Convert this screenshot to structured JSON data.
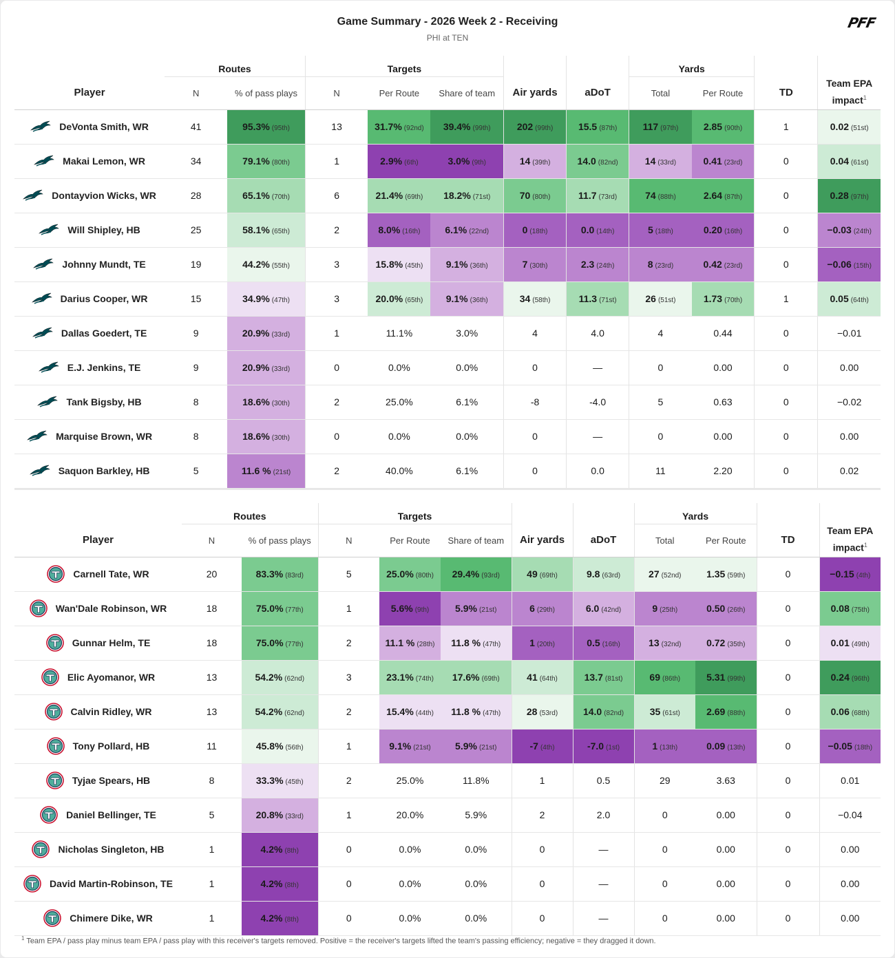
{
  "header": {
    "title": "Game Summary - 2026 Week 2 - Receiving",
    "subtitle": "PHI at TEN",
    "logo": "PFF"
  },
  "labels": {
    "player": "Player",
    "routes": "Routes",
    "targets": "Targets",
    "yards": "Yards",
    "n": "N",
    "pct_pass": "% of pass plays",
    "per_route": "Per Route",
    "share_team": "Share of team",
    "air_yards": "Air yards",
    "adot": "aDoT",
    "total": "Total",
    "td": "TD",
    "epa_line1": "Team EPA",
    "epa_line2": "impact",
    "footnote_mark": "1"
  },
  "footnote": "Team EPA / pass play minus team EPA / pass play with this receiver's targets removed. Positive = the receiver's targets lifted the team's passing efficiency; negative = they dragged it down.",
  "colors": {
    "dg": "#3f9c5c",
    "g": "#58ba72",
    "mg": "#7bcb90",
    "lg": "#a6dcb3",
    "vlg": "#cdebd5",
    "xlg": "#eaf6ec",
    "dp": "#8e41b0",
    "p": "#a461c0",
    "mp": "#bb85cf",
    "lp": "#d4b0e0",
    "vlp": "#ede0f3",
    "eagle": "#004c54",
    "titan": "#4b92db",
    "titan_red": "#c8102e"
  },
  "chart_data": [
    {
      "type": "table",
      "team": "PHI",
      "columns": [
        "Player",
        "Routes N",
        "% of pass plays",
        "Targets N",
        "Per Route",
        "Share of team",
        "Air yards",
        "aDoT",
        "Yards Total",
        "Yards Per Route",
        "TD",
        "Team EPA impact"
      ],
      "rows": [
        [
          "DeVonta Smith, WR",
          [
            "41"
          ],
          [
            "95.3%",
            "(95th)",
            "dg"
          ],
          [
            "13"
          ],
          [
            "31.7%",
            "(92nd)",
            "g"
          ],
          [
            "39.4%",
            "(99th)",
            "dg"
          ],
          [
            "202",
            "(99th)",
            "dg"
          ],
          [
            "15.5",
            "(87th)",
            "g"
          ],
          [
            "117",
            "(97th)",
            "dg"
          ],
          [
            "2.85",
            "(90th)",
            "g"
          ],
          [
            "1"
          ],
          [
            "0.02",
            "(51st)",
            "xlg"
          ]
        ],
        [
          "Makai Lemon, WR",
          [
            "34"
          ],
          [
            "79.1%",
            "(80th)",
            "mg"
          ],
          [
            "1"
          ],
          [
            "2.9%",
            "(6th)",
            "dp"
          ],
          [
            "3.0%",
            "(9th)",
            "dp"
          ],
          [
            "14",
            "(39th)",
            "lp"
          ],
          [
            "14.0",
            "(82nd)",
            "mg"
          ],
          [
            "14",
            "(33rd)",
            "lp"
          ],
          [
            "0.41",
            "(23rd)",
            "mp"
          ],
          [
            "0"
          ],
          [
            "0.04",
            "(61st)",
            "vlg"
          ]
        ],
        [
          "Dontayvion Wicks, WR",
          [
            "28"
          ],
          [
            "65.1%",
            "(70th)",
            "lg"
          ],
          [
            "6"
          ],
          [
            "21.4%",
            "(69th)",
            "lg"
          ],
          [
            "18.2%",
            "(71st)",
            "lg"
          ],
          [
            "70",
            "(80th)",
            "mg"
          ],
          [
            "11.7",
            "(73rd)",
            "lg"
          ],
          [
            "74",
            "(88th)",
            "g"
          ],
          [
            "2.64",
            "(87th)",
            "g"
          ],
          [
            "0"
          ],
          [
            "0.28",
            "(97th)",
            "dg"
          ]
        ],
        [
          "Will Shipley, HB",
          [
            "25"
          ],
          [
            "58.1%",
            "(65th)",
            "vlg"
          ],
          [
            "2"
          ],
          [
            "8.0%",
            "(16th)",
            "p"
          ],
          [
            "6.1%",
            "(22nd)",
            "mp"
          ],
          [
            "0",
            "(18th)",
            "p"
          ],
          [
            "0.0",
            "(14th)",
            "p"
          ],
          [
            "5",
            "(18th)",
            "p"
          ],
          [
            "0.20",
            "(16th)",
            "p"
          ],
          [
            "0"
          ],
          [
            "−0.03",
            "(24th)",
            "mp"
          ]
        ],
        [
          "Johnny Mundt, TE",
          [
            "19"
          ],
          [
            "44.2%",
            "(55th)",
            "xlg"
          ],
          [
            "3"
          ],
          [
            "15.8%",
            "(45th)",
            "vlp"
          ],
          [
            "9.1%",
            "(36th)",
            "lp"
          ],
          [
            "7",
            "(30th)",
            "mp"
          ],
          [
            "2.3",
            "(24th)",
            "mp"
          ],
          [
            "8",
            "(23rd)",
            "mp"
          ],
          [
            "0.42",
            "(23rd)",
            "mp"
          ],
          [
            "0"
          ],
          [
            "−0.06",
            "(15th)",
            "p"
          ]
        ],
        [
          "Darius Cooper, WR",
          [
            "15"
          ],
          [
            "34.9%",
            "(47th)",
            "vlp"
          ],
          [
            "3"
          ],
          [
            "20.0%",
            "(65th)",
            "vlg"
          ],
          [
            "9.1%",
            "(36th)",
            "lp"
          ],
          [
            "34",
            "(58th)",
            "xlg"
          ],
          [
            "11.3",
            "(71st)",
            "lg"
          ],
          [
            "26",
            "(51st)",
            "xlg"
          ],
          [
            "1.73",
            "(70th)",
            "lg"
          ],
          [
            "1"
          ],
          [
            "0.05",
            "(64th)",
            "vlg"
          ]
        ],
        [
          "Dallas Goedert, TE",
          [
            "9"
          ],
          [
            "20.9%",
            "(33rd)",
            "lp"
          ],
          [
            "1"
          ],
          [
            "11.1%"
          ],
          [
            "3.0%"
          ],
          [
            "4"
          ],
          [
            "4.0"
          ],
          [
            "4"
          ],
          [
            "0.44"
          ],
          [
            "0"
          ],
          [
            "−0.01"
          ]
        ],
        [
          "E.J. Jenkins, TE",
          [
            "9"
          ],
          [
            "20.9%",
            "(33rd)",
            "lp"
          ],
          [
            "0"
          ],
          [
            "0.0%"
          ],
          [
            "0.0%"
          ],
          [
            "0"
          ],
          [
            "—"
          ],
          [
            "0"
          ],
          [
            "0.00"
          ],
          [
            "0"
          ],
          [
            "0.00"
          ]
        ],
        [
          "Tank Bigsby, HB",
          [
            "8"
          ],
          [
            "18.6%",
            "(30th)",
            "lp"
          ],
          [
            "2"
          ],
          [
            "25.0%"
          ],
          [
            "6.1%"
          ],
          [
            "-8"
          ],
          [
            "-4.0"
          ],
          [
            "5"
          ],
          [
            "0.63"
          ],
          [
            "0"
          ],
          [
            "−0.02"
          ]
        ],
        [
          "Marquise Brown, WR",
          [
            "8"
          ],
          [
            "18.6%",
            "(30th)",
            "lp"
          ],
          [
            "0"
          ],
          [
            "0.0%"
          ],
          [
            "0.0%"
          ],
          [
            "0"
          ],
          [
            "—"
          ],
          [
            "0"
          ],
          [
            "0.00"
          ],
          [
            "0"
          ],
          [
            "0.00"
          ]
        ],
        [
          "Saquon Barkley, HB",
          [
            "5"
          ],
          [
            "11.6 %",
            "(21st)",
            "mp"
          ],
          [
            "2"
          ],
          [
            "40.0%"
          ],
          [
            "6.1%"
          ],
          [
            "0"
          ],
          [
            "0.0"
          ],
          [
            "11"
          ],
          [
            "2.20"
          ],
          [
            "0"
          ],
          [
            "0.02"
          ]
        ]
      ]
    },
    {
      "type": "table",
      "team": "TEN",
      "columns": [
        "Player",
        "Routes N",
        "% of pass plays",
        "Targets N",
        "Per Route",
        "Share of team",
        "Air yards",
        "aDoT",
        "Yards Total",
        "Yards Per Route",
        "TD",
        "Team EPA impact"
      ],
      "rows": [
        [
          "Carnell Tate, WR",
          [
            "20"
          ],
          [
            "83.3%",
            "(83rd)",
            "mg"
          ],
          [
            "5"
          ],
          [
            "25.0%",
            "(80th)",
            "mg"
          ],
          [
            "29.4%",
            "(93rd)",
            "g"
          ],
          [
            "49",
            "(69th)",
            "lg"
          ],
          [
            "9.8",
            "(63rd)",
            "vlg"
          ],
          [
            "27",
            "(52nd)",
            "xlg"
          ],
          [
            "1.35",
            "(59th)",
            "xlg"
          ],
          [
            "0"
          ],
          [
            "−0.15",
            "(4th)",
            "dp"
          ]
        ],
        [
          "Wan'Dale Robinson, WR",
          [
            "18"
          ],
          [
            "75.0%",
            "(77th)",
            "mg"
          ],
          [
            "1"
          ],
          [
            "5.6%",
            "(9th)",
            "dp"
          ],
          [
            "5.9%",
            "(21st)",
            "mp"
          ],
          [
            "6",
            "(29th)",
            "mp"
          ],
          [
            "6.0",
            "(42nd)",
            "lp"
          ],
          [
            "9",
            "(25th)",
            "mp"
          ],
          [
            "0.50",
            "(26th)",
            "mp"
          ],
          [
            "0"
          ],
          [
            "0.08",
            "(75th)",
            "mg"
          ]
        ],
        [
          "Gunnar Helm, TE",
          [
            "18"
          ],
          [
            "75.0%",
            "(77th)",
            "mg"
          ],
          [
            "2"
          ],
          [
            "11.1 %",
            "(28th)",
            "lp"
          ],
          [
            "11.8 %",
            "(47th)",
            "vlp"
          ],
          [
            "1",
            "(20th)",
            "p"
          ],
          [
            "0.5",
            "(16th)",
            "p"
          ],
          [
            "13",
            "(32nd)",
            "lp"
          ],
          [
            "0.72",
            "(35th)",
            "lp"
          ],
          [
            "0"
          ],
          [
            "0.01",
            "(49th)",
            "vlp"
          ]
        ],
        [
          "Elic Ayomanor, WR",
          [
            "13"
          ],
          [
            "54.2%",
            "(62nd)",
            "vlg"
          ],
          [
            "3"
          ],
          [
            "23.1%",
            "(74th)",
            "lg"
          ],
          [
            "17.6%",
            "(69th)",
            "lg"
          ],
          [
            "41",
            "(64th)",
            "vlg"
          ],
          [
            "13.7",
            "(81st)",
            "mg"
          ],
          [
            "69",
            "(86th)",
            "g"
          ],
          [
            "5.31",
            "(99th)",
            "dg"
          ],
          [
            "0"
          ],
          [
            "0.24",
            "(96th)",
            "dg"
          ]
        ],
        [
          "Calvin Ridley, WR",
          [
            "13"
          ],
          [
            "54.2%",
            "(62nd)",
            "vlg"
          ],
          [
            "2"
          ],
          [
            "15.4%",
            "(44th)",
            "vlp"
          ],
          [
            "11.8 %",
            "(47th)",
            "vlp"
          ],
          [
            "28",
            "(53rd)",
            "xlg"
          ],
          [
            "14.0",
            "(82nd)",
            "mg"
          ],
          [
            "35",
            "(61st)",
            "vlg"
          ],
          [
            "2.69",
            "(88th)",
            "g"
          ],
          [
            "0"
          ],
          [
            "0.06",
            "(68th)",
            "lg"
          ]
        ],
        [
          "Tony Pollard, HB",
          [
            "11"
          ],
          [
            "45.8%",
            "(56th)",
            "xlg"
          ],
          [
            "1"
          ],
          [
            "9.1%",
            "(21st)",
            "mp"
          ],
          [
            "5.9%",
            "(21st)",
            "mp"
          ],
          [
            "-7",
            "(4th)",
            "dp"
          ],
          [
            "-7.0",
            "(1st)",
            "dp"
          ],
          [
            "1",
            "(13th)",
            "p"
          ],
          [
            "0.09",
            "(13th)",
            "p"
          ],
          [
            "0"
          ],
          [
            "−0.05",
            "(18th)",
            "p"
          ]
        ],
        [
          "Tyjae Spears, HB",
          [
            "8"
          ],
          [
            "33.3%",
            "(45th)",
            "vlp"
          ],
          [
            "2"
          ],
          [
            "25.0%"
          ],
          [
            "11.8%"
          ],
          [
            "1"
          ],
          [
            "0.5"
          ],
          [
            "29"
          ],
          [
            "3.63"
          ],
          [
            "0"
          ],
          [
            "0.01"
          ]
        ],
        [
          "Daniel Bellinger, TE",
          [
            "5"
          ],
          [
            "20.8%",
            "(33rd)",
            "lp"
          ],
          [
            "1"
          ],
          [
            "20.0%"
          ],
          [
            "5.9%"
          ],
          [
            "2"
          ],
          [
            "2.0"
          ],
          [
            "0"
          ],
          [
            "0.00"
          ],
          [
            "0"
          ],
          [
            "−0.04"
          ]
        ],
        [
          "Nicholas Singleton, HB",
          [
            "1"
          ],
          [
            "4.2%",
            "(8th)",
            "dp"
          ],
          [
            "0"
          ],
          [
            "0.0%"
          ],
          [
            "0.0%"
          ],
          [
            "0"
          ],
          [
            "—"
          ],
          [
            "0"
          ],
          [
            "0.00"
          ],
          [
            "0"
          ],
          [
            "0.00"
          ]
        ],
        [
          "David Martin-Robinson, TE",
          [
            "1"
          ],
          [
            "4.2%",
            "(8th)",
            "dp"
          ],
          [
            "0"
          ],
          [
            "0.0%"
          ],
          [
            "0.0%"
          ],
          [
            "0"
          ],
          [
            "—"
          ],
          [
            "0"
          ],
          [
            "0.00"
          ],
          [
            "0"
          ],
          [
            "0.00"
          ]
        ],
        [
          "Chimere Dike, WR",
          [
            "1"
          ],
          [
            "4.2%",
            "(8th)",
            "dp"
          ],
          [
            "0"
          ],
          [
            "0.0%"
          ],
          [
            "0.0%"
          ],
          [
            "0"
          ],
          [
            "—"
          ],
          [
            "0"
          ],
          [
            "0.00"
          ],
          [
            "0"
          ],
          [
            "0.00"
          ]
        ]
      ]
    }
  ]
}
